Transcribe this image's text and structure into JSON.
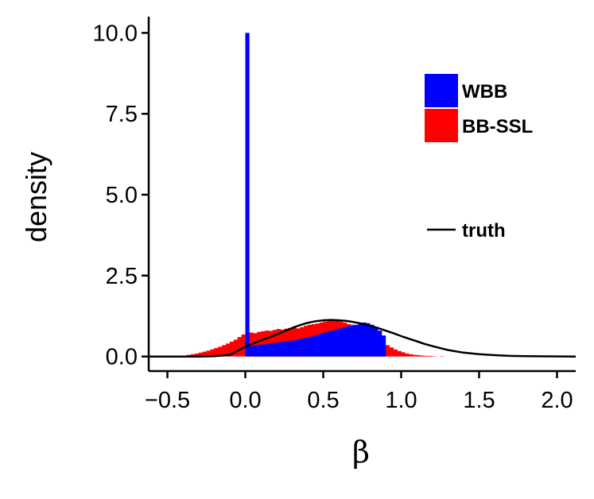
{
  "chart_data": {
    "type": "histogram",
    "xlabel": "β",
    "ylabel": "density",
    "xlim": [
      -0.62,
      2.12
    ],
    "ylim": [
      -0.45,
      10.5
    ],
    "x_ticks": [
      -0.5,
      0.0,
      0.5,
      1.0,
      1.5,
      2.0
    ],
    "x_tick_labels": [
      "−0.5",
      "0.0",
      "0.5",
      "1.0",
      "1.5",
      "2.0"
    ],
    "y_ticks": [
      0.0,
      2.5,
      5.0,
      7.5,
      10.0
    ],
    "y_tick_labels": [
      "0.0",
      "2.5",
      "5.0",
      "7.5",
      "10.0"
    ],
    "bin_width": 0.025,
    "series": [
      {
        "name": "BB-SSL",
        "color": "#ff0000",
        "bins": [
          [
            -0.45,
            0.01
          ],
          [
            -0.425,
            0.02
          ],
          [
            -0.4,
            0.03
          ],
          [
            -0.375,
            0.05
          ],
          [
            -0.35,
            0.07
          ],
          [
            -0.325,
            0.09
          ],
          [
            -0.3,
            0.12
          ],
          [
            -0.275,
            0.15
          ],
          [
            -0.25,
            0.18
          ],
          [
            -0.225,
            0.22
          ],
          [
            -0.2,
            0.26
          ],
          [
            -0.175,
            0.3
          ],
          [
            -0.15,
            0.35
          ],
          [
            -0.125,
            0.4
          ],
          [
            -0.1,
            0.46
          ],
          [
            -0.075,
            0.52
          ],
          [
            -0.05,
            0.6
          ],
          [
            -0.025,
            0.68
          ],
          [
            0.0,
            0.7
          ],
          [
            0.025,
            0.74
          ],
          [
            0.05,
            0.72
          ],
          [
            0.075,
            0.76
          ],
          [
            0.1,
            0.78
          ],
          [
            0.125,
            0.8
          ],
          [
            0.15,
            0.79
          ],
          [
            0.175,
            0.82
          ],
          [
            0.2,
            0.85
          ],
          [
            0.225,
            0.83
          ],
          [
            0.25,
            0.86
          ],
          [
            0.275,
            0.88
          ],
          [
            0.3,
            0.9
          ],
          [
            0.325,
            0.87
          ],
          [
            0.35,
            0.91
          ],
          [
            0.375,
            0.95
          ],
          [
            0.4,
            0.98
          ],
          [
            0.425,
            1.0
          ],
          [
            0.45,
            1.02
          ],
          [
            0.475,
            1.05
          ],
          [
            0.5,
            1.08
          ],
          [
            0.525,
            1.1
          ],
          [
            0.55,
            1.12
          ],
          [
            0.575,
            1.1
          ],
          [
            0.6,
            1.08
          ],
          [
            0.625,
            1.05
          ],
          [
            0.65,
            1.0
          ],
          [
            0.675,
            0.98
          ],
          [
            0.7,
            0.92
          ],
          [
            0.725,
            0.88
          ],
          [
            0.75,
            0.82
          ],
          [
            0.775,
            0.76
          ],
          [
            0.8,
            0.68
          ],
          [
            0.825,
            0.6
          ],
          [
            0.85,
            0.5
          ],
          [
            0.875,
            0.42
          ],
          [
            0.9,
            0.35
          ],
          [
            0.925,
            0.28
          ],
          [
            0.95,
            0.22
          ],
          [
            0.975,
            0.17
          ],
          [
            1.0,
            0.13
          ],
          [
            1.025,
            0.09
          ],
          [
            1.05,
            0.07
          ],
          [
            1.075,
            0.05
          ],
          [
            1.1,
            0.04
          ],
          [
            1.125,
            0.03
          ],
          [
            1.15,
            0.02
          ],
          [
            1.175,
            0.02
          ],
          [
            1.2,
            0.01
          ],
          [
            1.25,
            0.01
          ]
        ]
      },
      {
        "name": "WBB",
        "color": "#0000ff",
        "bins": [
          [
            0.0,
            10.0
          ],
          [
            0.025,
            0.32
          ],
          [
            0.05,
            0.34
          ],
          [
            0.075,
            0.36
          ],
          [
            0.1,
            0.37
          ],
          [
            0.125,
            0.38
          ],
          [
            0.15,
            0.4
          ],
          [
            0.175,
            0.42
          ],
          [
            0.2,
            0.44
          ],
          [
            0.225,
            0.45
          ],
          [
            0.25,
            0.47
          ],
          [
            0.275,
            0.48
          ],
          [
            0.3,
            0.5
          ],
          [
            0.325,
            0.52
          ],
          [
            0.35,
            0.55
          ],
          [
            0.375,
            0.58
          ],
          [
            0.4,
            0.6
          ],
          [
            0.425,
            0.64
          ],
          [
            0.45,
            0.67
          ],
          [
            0.475,
            0.7
          ],
          [
            0.5,
            0.74
          ],
          [
            0.525,
            0.78
          ],
          [
            0.55,
            0.8
          ],
          [
            0.575,
            0.84
          ],
          [
            0.6,
            0.87
          ],
          [
            0.625,
            0.9
          ],
          [
            0.65,
            0.94
          ],
          [
            0.675,
            0.96
          ],
          [
            0.7,
            0.98
          ],
          [
            0.725,
            1.0
          ],
          [
            0.75,
            1.05
          ],
          [
            0.775,
            1.03
          ],
          [
            0.8,
            0.98
          ],
          [
            0.825,
            0.92
          ],
          [
            0.85,
            0.8
          ],
          [
            0.875,
            0.65
          ]
        ]
      }
    ],
    "truth_curve": {
      "name": "truth",
      "color": "#000000",
      "x": [
        -0.62,
        -0.3,
        -0.2,
        -0.1,
        0.0,
        0.05,
        0.1,
        0.15,
        0.2,
        0.25,
        0.3,
        0.35,
        0.4,
        0.45,
        0.5,
        0.55,
        0.6,
        0.65,
        0.7,
        0.75,
        0.8,
        0.85,
        0.9,
        0.95,
        1.0,
        1.05,
        1.1,
        1.15,
        1.2,
        1.25,
        1.3,
        1.4,
        1.5,
        1.6,
        1.7,
        1.8,
        2.12
      ],
      "y": [
        0.0,
        0.0,
        0.01,
        0.05,
        0.3,
        0.4,
        0.5,
        0.58,
        0.68,
        0.78,
        0.88,
        0.97,
        1.04,
        1.09,
        1.12,
        1.13,
        1.12,
        1.1,
        1.06,
        1.01,
        0.95,
        0.88,
        0.8,
        0.72,
        0.63,
        0.55,
        0.47,
        0.39,
        0.32,
        0.26,
        0.2,
        0.12,
        0.07,
        0.04,
        0.02,
        0.01,
        0.0
      ]
    },
    "legend": {
      "position": "right",
      "items": [
        {
          "label": "WBB",
          "color": "#0000ff"
        },
        {
          "label": "BB-SSL",
          "color": "#ff0000"
        }
      ],
      "line_items": [
        {
          "label": "truth",
          "color": "#000000"
        }
      ]
    },
    "grid": false
  }
}
